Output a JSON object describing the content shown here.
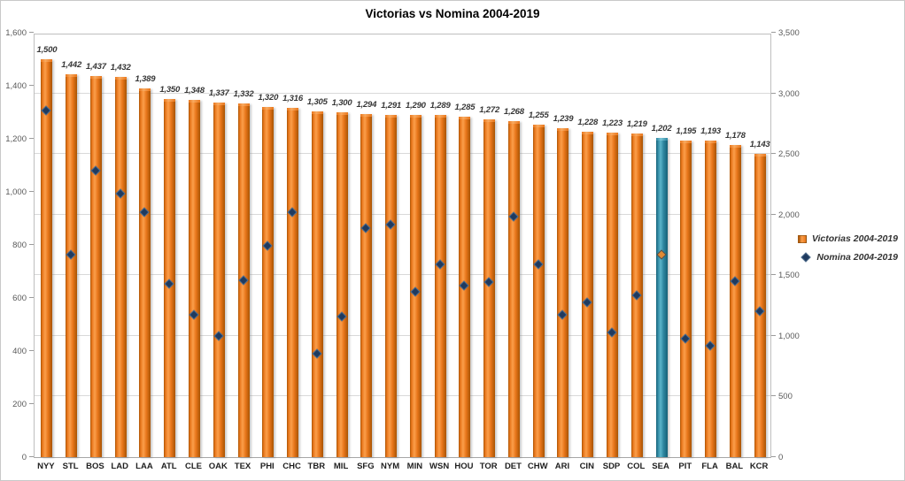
{
  "title": "Victorias vs Nomina 2004-2019",
  "legend": [
    {
      "label": "Victorias 2004-2019",
      "marker": "square",
      "color": "#E8761B"
    },
    {
      "label": "Nomina 2004-2019",
      "marker": "diamond",
      "color": "#1F3A5F"
    }
  ],
  "colors": {
    "bar": "#E8761B",
    "bar_highlight": "#FB9F4B",
    "bar_dark": "#A85403",
    "bar_cap": "#F9AA60",
    "teal": "#2E86A0",
    "teal_highlight": "#5BB4CA",
    "teal_dark": "#155F75",
    "teal_cap": "#79C6D8",
    "marker": "#1F3A5F",
    "marker_edge": "#52708F",
    "marker_sea": "#E08A33",
    "marker_sea_edge": "#4D4D4D",
    "gridline": "#d9d9d9"
  },
  "chart_data": {
    "type": "bar",
    "combo": "bars on left axis + diamond scatter markers on right axis",
    "title": "Victorias vs Nomina 2004-2019",
    "grid": "horizontal gridlines every 500 units of right axis",
    "legend_position": "right",
    "categories": [
      "NYY",
      "STL",
      "BOS",
      "LAD",
      "LAA",
      "ATL",
      "CLE",
      "OAK",
      "TEX",
      "PHI",
      "CHC",
      "TBR",
      "MIL",
      "SFG",
      "NYM",
      "MIN",
      "WSN",
      "HOU",
      "TOR",
      "DET",
      "CHW",
      "ARI",
      "CIN",
      "SDP",
      "COL",
      "SEA",
      "PIT",
      "FLA",
      "BAL",
      "KCR"
    ],
    "series": [
      {
        "name": "Victorias 2004-2019",
        "type": "bar",
        "axis": "left",
        "values": [
          1500,
          1442,
          1437,
          1432,
          1389,
          1350,
          1348,
          1337,
          1332,
          1320,
          1316,
          1305,
          1300,
          1294,
          1291,
          1290,
          1289,
          1285,
          1272,
          1268,
          1255,
          1239,
          1228,
          1223,
          1219,
          1202,
          1195,
          1193,
          1178,
          1143
        ],
        "data_labels": [
          "1,500",
          "1,442",
          "1,437",
          "1,432",
          "1,389",
          "1,350",
          "1,348",
          "1,337",
          "1,332",
          "1,320",
          "1,316",
          "1,305",
          "1,300",
          "1,294",
          "1,291",
          "1,290",
          "1,289",
          "1,285",
          "1,272",
          "1,268",
          "1,255",
          "1,239",
          "1,228",
          "1,223",
          "1,219",
          "1,202",
          "1,195",
          "1,193",
          "1,178",
          "1,143"
        ]
      },
      {
        "name": "Nomina 2004-2019",
        "type": "scatter",
        "axis": "right",
        "values": [
          2865,
          1675,
          2365,
          2175,
          2025,
          1430,
          1180,
          1005,
          1460,
          1750,
          2020,
          855,
          1160,
          1890,
          1920,
          1365,
          1590,
          1420,
          1450,
          1985,
          1595,
          1180,
          1280,
          1035,
          1340,
          1670,
          980,
          925,
          1455,
          1210
        ]
      }
    ],
    "highlight": {
      "category": "SEA",
      "note": "SEA bar is teal and its marker is orange"
    },
    "left_axis": {
      "min": 0,
      "max": 1600,
      "step": 200,
      "labels": [
        "0",
        "200",
        "400",
        "600",
        "800",
        "1,000",
        "1,200",
        "1,400",
        "1,600"
      ]
    },
    "right_axis": {
      "min": 0,
      "max": 3500,
      "step": 500,
      "labels": [
        "0",
        "500",
        "1,000",
        "1,500",
        "2,000",
        "2,500",
        "3,000",
        "3,500"
      ]
    }
  }
}
